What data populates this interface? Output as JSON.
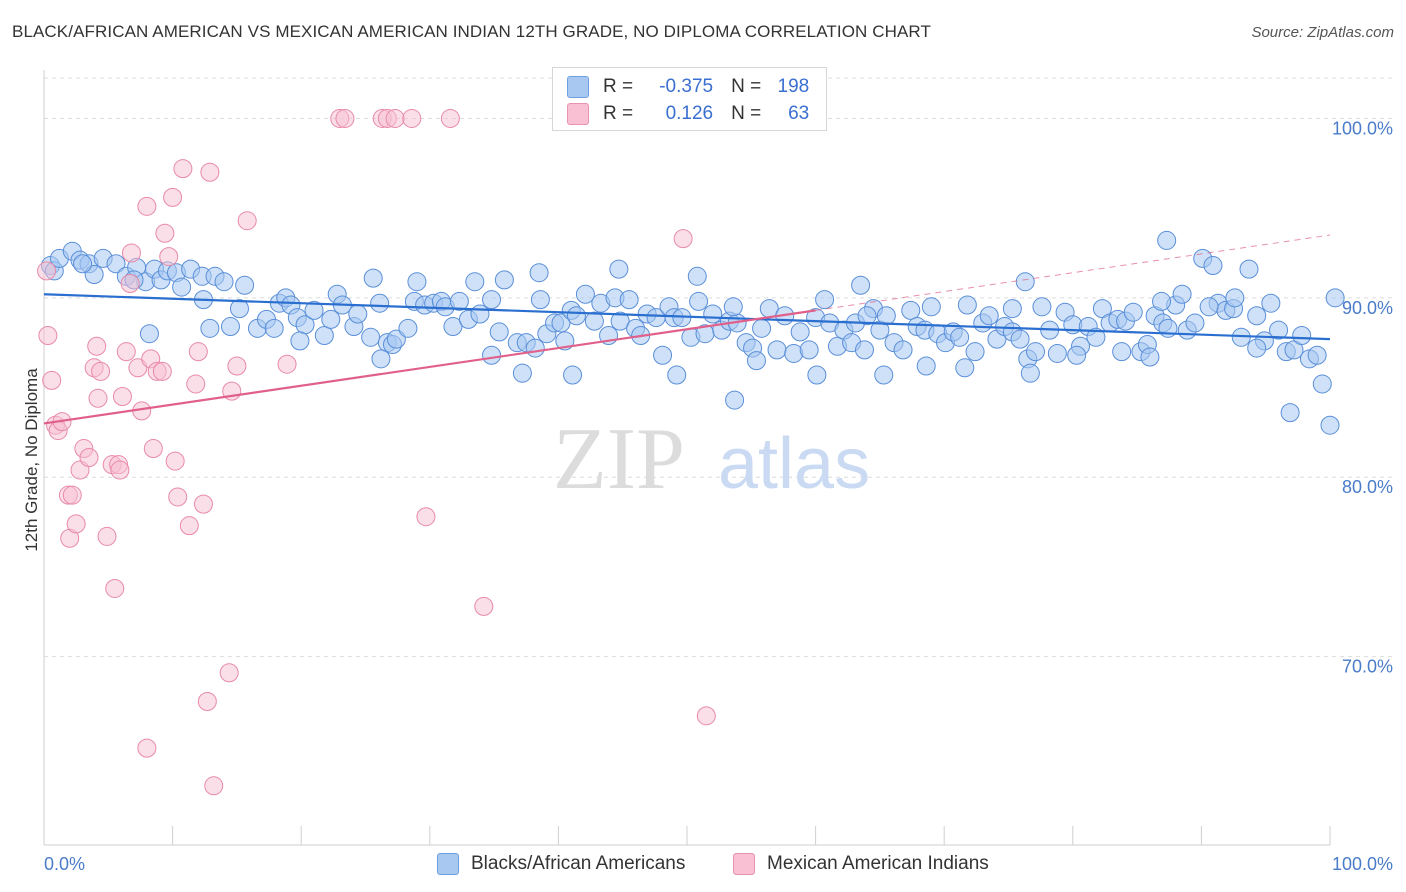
{
  "title": "BLACK/AFRICAN AMERICAN VS MEXICAN AMERICAN INDIAN 12TH GRADE, NO DIPLOMA CORRELATION CHART",
  "source": "Source: ZipAtlas.com",
  "watermark": {
    "zip": "ZIP",
    "atlas": "atlas"
  },
  "legend": {
    "r_label": "R =",
    "n_label": "N =",
    "series1": {
      "r": "-0.375",
      "n": "198"
    },
    "series2": {
      "r": "0.126",
      "n": "63"
    }
  },
  "bottom_legend": {
    "series1": "Blacks/African Americans",
    "series2": "Mexican American Indians"
  },
  "colors": {
    "blue_fill": "#a8c8f2",
    "blue_stroke": "#5a8fd8",
    "blue_line": "#2a6fd0",
    "pink_fill": "#f8c0d2",
    "pink_stroke": "#e88aa8",
    "pink_line": "#e0608a"
  },
  "chart_data": {
    "type": "scatter",
    "title": "BLACK/AFRICAN AMERICAN VS MEXICAN AMERICAN INDIAN 12TH GRADE, NO DIPLOMA CORRELATION CHART",
    "xlabel": "",
    "ylabel": "12th Grade, No Diploma",
    "xlim": [
      0,
      100
    ],
    "ylim": [
      59.5,
      102.7
    ],
    "x_tick_labels": [
      "0.0%",
      "100.0%"
    ],
    "y_ticks": [
      70,
      80,
      90,
      100
    ],
    "y_tick_labels": [
      "70.0%",
      "80.0%",
      "90.0%",
      "100.0%"
    ],
    "series": [
      {
        "name": "Blacks/African Americans",
        "r": -0.375,
        "n": 198,
        "trend": {
          "x": [
            0,
            100
          ],
          "y": [
            90.2,
            87.7
          ]
        },
        "points": [
          [
            0.5,
            91.8
          ],
          [
            0.8,
            91.5
          ],
          [
            1.2,
            92.2
          ],
          [
            2.2,
            92.6
          ],
          [
            2.8,
            92.1
          ],
          [
            3.5,
            91.9
          ],
          [
            3.9,
            91.3
          ],
          [
            4.6,
            92.2
          ],
          [
            5.6,
            91.9
          ],
          [
            6.4,
            91.2
          ],
          [
            7.2,
            91.7
          ],
          [
            7.9,
            90.9
          ],
          [
            8.6,
            91.6
          ],
          [
            9.1,
            91.0
          ],
          [
            9.6,
            91.5
          ],
          [
            10.3,
            91.4
          ],
          [
            10.7,
            90.6
          ],
          [
            11.4,
            91.6
          ],
          [
            12.3,
            91.2
          ],
          [
            12.4,
            89.9
          ],
          [
            12.9,
            88.3
          ],
          [
            13.3,
            91.2
          ],
          [
            14.0,
            90.9
          ],
          [
            14.5,
            88.4
          ],
          [
            15.2,
            89.4
          ],
          [
            15.6,
            90.7
          ],
          [
            16.6,
            88.3
          ],
          [
            17.3,
            88.8
          ],
          [
            17.9,
            88.3
          ],
          [
            18.3,
            89.7
          ],
          [
            18.8,
            90.0
          ],
          [
            19.2,
            89.6
          ],
          [
            19.7,
            88.9
          ],
          [
            20.3,
            88.5
          ],
          [
            21.0,
            89.3
          ],
          [
            21.8,
            87.9
          ],
          [
            22.3,
            88.8
          ],
          [
            22.8,
            90.2
          ],
          [
            23.2,
            89.6
          ],
          [
            24.1,
            88.4
          ],
          [
            24.4,
            89.1
          ],
          [
            25.4,
            87.8
          ],
          [
            26.1,
            89.7
          ],
          [
            26.7,
            87.5
          ],
          [
            27.1,
            87.4
          ],
          [
            27.4,
            87.7
          ],
          [
            28.3,
            88.3
          ],
          [
            28.8,
            89.8
          ],
          [
            29.0,
            90.9
          ],
          [
            29.6,
            89.6
          ],
          [
            30.3,
            89.7
          ],
          [
            30.9,
            89.8
          ],
          [
            31.2,
            89.5
          ],
          [
            31.8,
            88.4
          ],
          [
            32.3,
            89.8
          ],
          [
            33.0,
            88.8
          ],
          [
            33.5,
            90.9
          ],
          [
            33.9,
            89.1
          ],
          [
            34.8,
            89.9
          ],
          [
            35.4,
            88.1
          ],
          [
            35.8,
            91.0
          ],
          [
            36.8,
            87.5
          ],
          [
            37.5,
            87.5
          ],
          [
            38.2,
            87.2
          ],
          [
            38.6,
            89.9
          ],
          [
            39.1,
            88.0
          ],
          [
            39.7,
            88.6
          ],
          [
            40.2,
            88.6
          ],
          [
            40.5,
            87.6
          ],
          [
            41.0,
            89.3
          ],
          [
            41.4,
            89.0
          ],
          [
            42.1,
            90.2
          ],
          [
            42.8,
            88.7
          ],
          [
            43.3,
            89.7
          ],
          [
            43.9,
            87.9
          ],
          [
            44.4,
            90.0
          ],
          [
            44.8,
            88.7
          ],
          [
            45.5,
            89.9
          ],
          [
            46.0,
            88.3
          ],
          [
            46.4,
            87.9
          ],
          [
            46.9,
            89.1
          ],
          [
            47.6,
            88.9
          ],
          [
            48.1,
            86.8
          ],
          [
            48.6,
            89.5
          ],
          [
            49.0,
            88.9
          ],
          [
            49.6,
            88.9
          ],
          [
            50.3,
            87.8
          ],
          [
            50.9,
            89.8
          ],
          [
            51.4,
            88.0
          ],
          [
            52.0,
            89.1
          ],
          [
            52.7,
            88.2
          ],
          [
            53.3,
            88.7
          ],
          [
            53.9,
            88.6
          ],
          [
            54.6,
            87.5
          ],
          [
            55.1,
            87.2
          ],
          [
            55.8,
            88.3
          ],
          [
            56.4,
            89.4
          ],
          [
            57.0,
            87.1
          ],
          [
            57.6,
            89.0
          ],
          [
            58.3,
            86.9
          ],
          [
            58.8,
            88.1
          ],
          [
            59.5,
            87.1
          ],
          [
            60.0,
            88.9
          ],
          [
            60.7,
            89.9
          ],
          [
            61.1,
            88.6
          ],
          [
            61.7,
            87.3
          ],
          [
            62.2,
            88.2
          ],
          [
            62.8,
            87.5
          ],
          [
            63.1,
            88.6
          ],
          [
            63.8,
            87.1
          ],
          [
            64.5,
            89.4
          ],
          [
            65.0,
            88.2
          ],
          [
            65.5,
            89.0
          ],
          [
            66.1,
            87.5
          ],
          [
            66.8,
            87.1
          ],
          [
            67.4,
            89.3
          ],
          [
            67.9,
            88.4
          ],
          [
            68.5,
            88.2
          ],
          [
            69.0,
            89.5
          ],
          [
            69.5,
            88.0
          ],
          [
            70.1,
            87.5
          ],
          [
            70.7,
            88.1
          ],
          [
            71.2,
            87.8
          ],
          [
            71.8,
            89.6
          ],
          [
            72.4,
            87.0
          ],
          [
            73.0,
            88.6
          ],
          [
            73.5,
            89.0
          ],
          [
            74.1,
            87.7
          ],
          [
            74.7,
            88.4
          ],
          [
            75.3,
            88.1
          ],
          [
            75.9,
            87.7
          ],
          [
            76.5,
            86.6
          ],
          [
            77.1,
            87.0
          ],
          [
            77.6,
            89.5
          ],
          [
            78.2,
            88.2
          ],
          [
            78.8,
            86.9
          ],
          [
            79.4,
            89.2
          ],
          [
            80.0,
            88.5
          ],
          [
            80.6,
            87.3
          ],
          [
            81.2,
            88.4
          ],
          [
            81.8,
            87.8
          ],
          [
            82.3,
            89.4
          ],
          [
            82.9,
            88.6
          ],
          [
            83.5,
            88.8
          ],
          [
            84.1,
            88.7
          ],
          [
            84.7,
            89.2
          ],
          [
            85.3,
            87.0
          ],
          [
            85.8,
            87.4
          ],
          [
            86.4,
            89.0
          ],
          [
            87.0,
            88.6
          ],
          [
            87.4,
            88.3
          ],
          [
            88.0,
            89.6
          ],
          [
            88.5,
            90.2
          ],
          [
            88.9,
            88.2
          ],
          [
            89.5,
            88.6
          ],
          [
            90.1,
            92.2
          ],
          [
            90.9,
            91.8
          ],
          [
            91.3,
            89.7
          ],
          [
            91.9,
            89.3
          ],
          [
            92.5,
            89.4
          ],
          [
            93.1,
            87.8
          ],
          [
            93.7,
            91.6
          ],
          [
            94.3,
            89.0
          ],
          [
            94.9,
            87.6
          ],
          [
            95.4,
            89.7
          ],
          [
            96.0,
            88.2
          ],
          [
            96.6,
            87.0
          ],
          [
            97.2,
            87.1
          ],
          [
            97.8,
            87.9
          ],
          [
            98.4,
            86.6
          ],
          [
            99.0,
            86.8
          ],
          [
            99.4,
            85.2
          ],
          [
            100.0,
            82.9
          ],
          [
            100.4,
            90.0
          ],
          [
            96.9,
            83.6
          ],
          [
            87.3,
            93.2
          ],
          [
            90.6,
            89.5
          ],
          [
            80.3,
            86.8
          ],
          [
            71.6,
            86.1
          ],
          [
            60.1,
            85.7
          ],
          [
            49.2,
            85.7
          ],
          [
            41.1,
            85.7
          ],
          [
            34.8,
            86.8
          ],
          [
            26.2,
            86.6
          ],
          [
            37.2,
            85.8
          ],
          [
            53.7,
            84.3
          ],
          [
            65.3,
            85.7
          ],
          [
            76.7,
            85.8
          ],
          [
            86.0,
            86.7
          ],
          [
            94.3,
            87.2
          ],
          [
            55.4,
            86.5
          ],
          [
            68.6,
            86.2
          ],
          [
            83.8,
            87.0
          ],
          [
            3.0,
            91.9
          ],
          [
            8.2,
            88.0
          ],
          [
            19.9,
            87.6
          ],
          [
            44.7,
            91.6
          ],
          [
            50.8,
            91.2
          ],
          [
            76.3,
            90.9
          ],
          [
            63.5,
            90.7
          ],
          [
            25.6,
            91.1
          ],
          [
            7.0,
            91.0
          ],
          [
            92.6,
            90.0
          ],
          [
            86.9,
            89.8
          ],
          [
            75.3,
            89.4
          ],
          [
            64.0,
            89.0
          ],
          [
            53.6,
            89.5
          ],
          [
            38.5,
            91.4
          ]
        ]
      },
      {
        "name": "Mexican American Indians",
        "r": 0.126,
        "n": 63,
        "trend": {
          "x": [
            0,
            60
          ],
          "y": [
            83.0,
            89.3
          ]
        },
        "points": [
          [
            0.2,
            91.5
          ],
          [
            0.3,
            87.9
          ],
          [
            0.6,
            85.4
          ],
          [
            0.9,
            82.9
          ],
          [
            1.1,
            82.6
          ],
          [
            1.4,
            83.1
          ],
          [
            1.9,
            79.0
          ],
          [
            2.0,
            76.6
          ],
          [
            2.2,
            79.0
          ],
          [
            2.5,
            77.4
          ],
          [
            2.8,
            80.4
          ],
          [
            3.1,
            81.6
          ],
          [
            3.5,
            81.1
          ],
          [
            3.9,
            86.1
          ],
          [
            4.1,
            87.3
          ],
          [
            4.2,
            84.4
          ],
          [
            4.4,
            85.9
          ],
          [
            4.9,
            76.7
          ],
          [
            5.3,
            80.7
          ],
          [
            5.5,
            73.8
          ],
          [
            5.8,
            80.7
          ],
          [
            5.9,
            80.4
          ],
          [
            6.1,
            84.5
          ],
          [
            6.4,
            87.0
          ],
          [
            6.7,
            90.8
          ],
          [
            6.8,
            92.5
          ],
          [
            7.3,
            86.1
          ],
          [
            7.6,
            83.7
          ],
          [
            8.0,
            64.9
          ],
          [
            8.0,
            95.1
          ],
          [
            8.3,
            86.6
          ],
          [
            8.5,
            81.6
          ],
          [
            8.8,
            85.9
          ],
          [
            9.2,
            85.9
          ],
          [
            9.4,
            93.6
          ],
          [
            9.7,
            92.3
          ],
          [
            10.0,
            95.6
          ],
          [
            10.2,
            80.9
          ],
          [
            10.4,
            78.9
          ],
          [
            10.8,
            97.2
          ],
          [
            11.3,
            77.3
          ],
          [
            11.8,
            85.2
          ],
          [
            12.0,
            87.0
          ],
          [
            12.4,
            78.5
          ],
          [
            12.7,
            67.5
          ],
          [
            12.9,
            97.0
          ],
          [
            13.2,
            62.8
          ],
          [
            14.4,
            69.1
          ],
          [
            14.6,
            84.8
          ],
          [
            15.0,
            86.2
          ],
          [
            15.8,
            94.3
          ],
          [
            18.9,
            86.3
          ],
          [
            23.0,
            100.0
          ],
          [
            23.4,
            100.0
          ],
          [
            26.3,
            100.0
          ],
          [
            26.7,
            100.0
          ],
          [
            27.3,
            100.0
          ],
          [
            28.6,
            100.0
          ],
          [
            29.7,
            77.8
          ],
          [
            31.6,
            100.0
          ],
          [
            34.2,
            72.8
          ],
          [
            49.7,
            93.3
          ],
          [
            51.5,
            66.7
          ]
        ]
      }
    ]
  }
}
